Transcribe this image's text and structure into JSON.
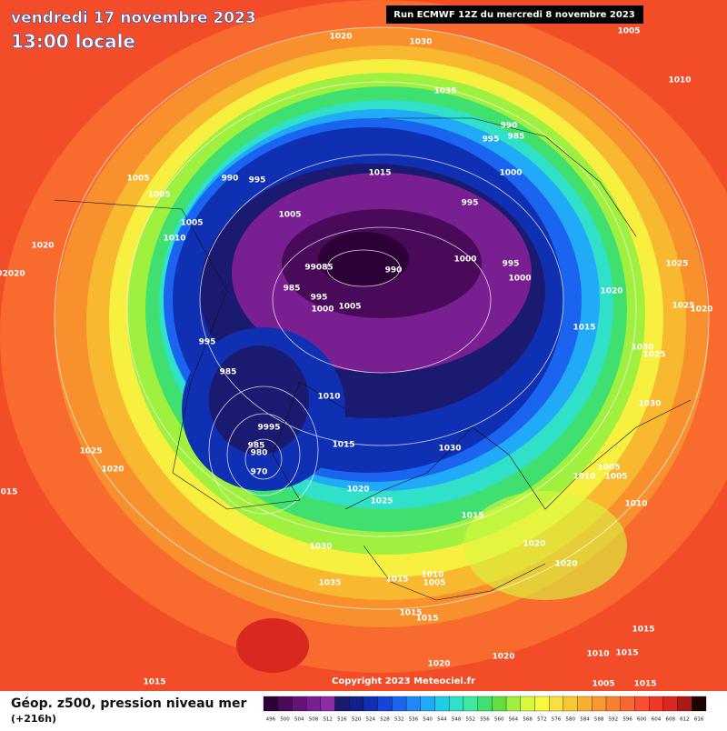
{
  "header": {
    "title": "vendredi 17 novembre 2023",
    "time": "13:00 locale",
    "run": "Run ECMWF 12Z du mercredi 8 novembre 2023"
  },
  "copyright": "Copyright 2023 Meteociel.fr",
  "legend": {
    "title": "Géop. z500, pression niveau mer",
    "subtitle": "(+216h)",
    "values": [
      496,
      500,
      504,
      508,
      512,
      516,
      520,
      524,
      528,
      532,
      536,
      540,
      544,
      548,
      552,
      556,
      560,
      564,
      568,
      572,
      576,
      580,
      584,
      588,
      592,
      596,
      600,
      604,
      608,
      612,
      616
    ],
    "colors": [
      "#2d0037",
      "#4a0a5a",
      "#641478",
      "#7a1f92",
      "#8c2ca8",
      "#1a1a70",
      "#10208c",
      "#1030b4",
      "#1444d8",
      "#1a64f0",
      "#2088f8",
      "#20aaf8",
      "#20cce8",
      "#30e0c8",
      "#40e8a0",
      "#40e070",
      "#60e040",
      "#a0f040",
      "#d8f840",
      "#f8f840",
      "#f8e040",
      "#f8c830",
      "#f8b030",
      "#f89830",
      "#f88030",
      "#f86830",
      "#f85030",
      "#f03828",
      "#d82820",
      "#b01818",
      "#200404"
    ]
  },
  "isobar_labels": [
    "1020",
    "1030",
    "1005",
    "1010",
    "1035",
    "990",
    "995",
    "985",
    "1000",
    "1015",
    "995",
    "1005",
    "1005",
    "990",
    "995",
    "1005",
    "1005",
    "1010",
    "1020",
    "1000",
    "995",
    "1000",
    "99085",
    "990",
    "1025",
    "02020",
    "985",
    "995",
    "1000",
    "1005",
    "1020",
    "1025",
    "1020",
    "1015",
    "995",
    "1030",
    "1025",
    "985",
    "1010",
    "1030",
    "9995",
    "985",
    "980",
    "1015",
    "1030",
    "970",
    "1025",
    "1020",
    "1005",
    "1010",
    "1005",
    "015",
    "1020",
    "1025",
    "1015",
    "1010",
    "1020",
    "1030",
    "1020",
    "1010",
    "1015",
    "1005",
    "1035",
    "1015",
    "1015",
    "1015",
    "1020",
    "1020",
    "1010",
    "1015",
    "1015",
    "1005",
    "1015"
  ]
}
